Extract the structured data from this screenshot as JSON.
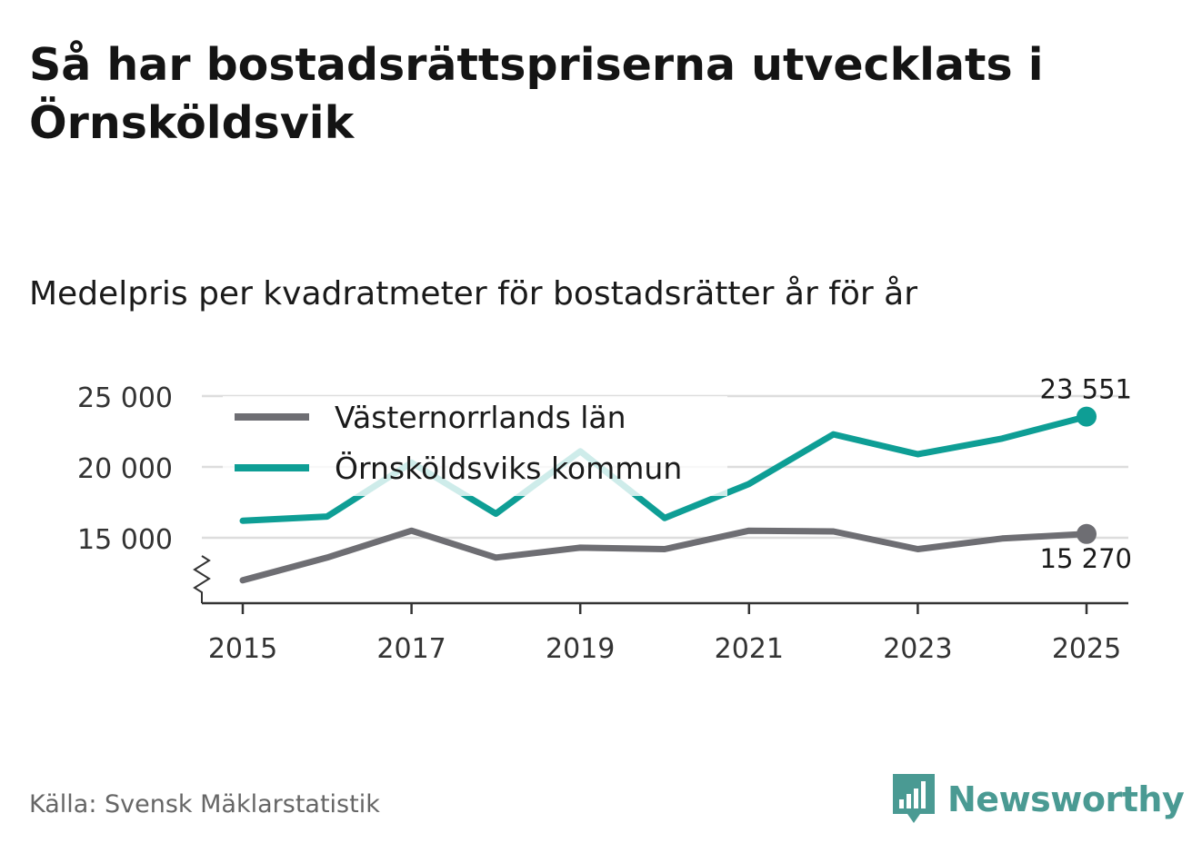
{
  "header": {
    "title": "Så har bostadsrättspriserna utvecklats i Örnsköldsvik",
    "subtitle": "Medelpris per kvadratmeter för bostadsrätter år för år"
  },
  "footer": {
    "source": "Källa: Svensk Mäklarstatistik",
    "brand": "Newsworthy"
  },
  "colors": {
    "orn": "#0e9e95",
    "vast": "#6e6e73",
    "grid": "#dddddd",
    "axis": "#333333"
  },
  "chart_data": {
    "type": "line",
    "title": "Medelpris per kvadratmeter för bostadsrätter år för år",
    "xlabel": "",
    "ylabel": "",
    "x": [
      2015,
      2016,
      2017,
      2018,
      2019,
      2020,
      2021,
      2022,
      2023,
      2024,
      2025
    ],
    "x_ticks": [
      "2015",
      "2017",
      "2019",
      "2021",
      "2023",
      "2025"
    ],
    "y_ticks": [
      {
        "value": 15000,
        "label": "15 000"
      },
      {
        "value": 20000,
        "label": "20 000"
      },
      {
        "value": 25000,
        "label": "25 000"
      }
    ],
    "ylim": [
      10000,
      26000
    ],
    "axis_break": true,
    "legend_position": "top-left",
    "series": [
      {
        "name": "Västernorrlands län",
        "color_key": "vast",
        "values": [
          12000,
          13600,
          15500,
          13600,
          14300,
          14200,
          15500,
          15450,
          14200,
          14950,
          15270
        ],
        "end_label": "15 270"
      },
      {
        "name": "Örnsköldsviks kommun",
        "color_key": "orn",
        "values": [
          16200,
          16500,
          20300,
          16700,
          21100,
          16400,
          18800,
          22300,
          20900,
          22000,
          23551
        ],
        "end_label": "23 551"
      }
    ]
  }
}
